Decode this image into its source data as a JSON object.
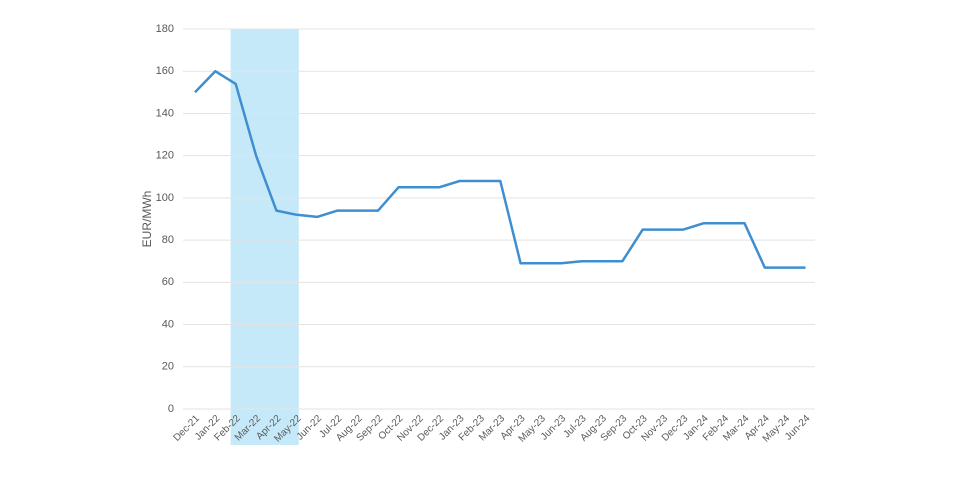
{
  "chart_data": {
    "type": "line",
    "y_label": "EUR/MWh",
    "categories": [
      "Dec-21",
      "Jan-22",
      "Feb-22",
      "Mar-22",
      "Apr-22",
      "May-22",
      "Jun-22",
      "Jul-22",
      "Aug-22",
      "Sep-22",
      "Oct-22",
      "Nov-22",
      "Dec-22",
      "Jan-23",
      "Feb-23",
      "Mar-23",
      "Apr-23",
      "May-23",
      "Jun-23",
      "Jul-23",
      "Aug-23",
      "Sep-23",
      "Oct-23",
      "Nov-23",
      "Dec-23",
      "Jan-24",
      "Feb-24",
      "Mar-24",
      "Apr-24",
      "May-24",
      "Jun-24"
    ],
    "values": [
      150,
      160,
      154,
      120,
      94,
      92,
      91,
      94,
      94,
      94,
      105,
      105,
      105,
      108,
      108,
      108,
      69,
      69,
      69,
      70,
      70,
      70,
      85,
      85,
      85,
      88,
      88,
      88,
      67,
      67,
      67
    ],
    "color": "#3f8fd0",
    "highlight": {
      "from": "Feb-22",
      "to": "May-22",
      "color": "#c6e9fa"
    },
    "ylim": [
      0,
      180
    ],
    "yticks": [
      0,
      20,
      40,
      60,
      80,
      100,
      120,
      140,
      160,
      180
    ],
    "grid": true
  }
}
